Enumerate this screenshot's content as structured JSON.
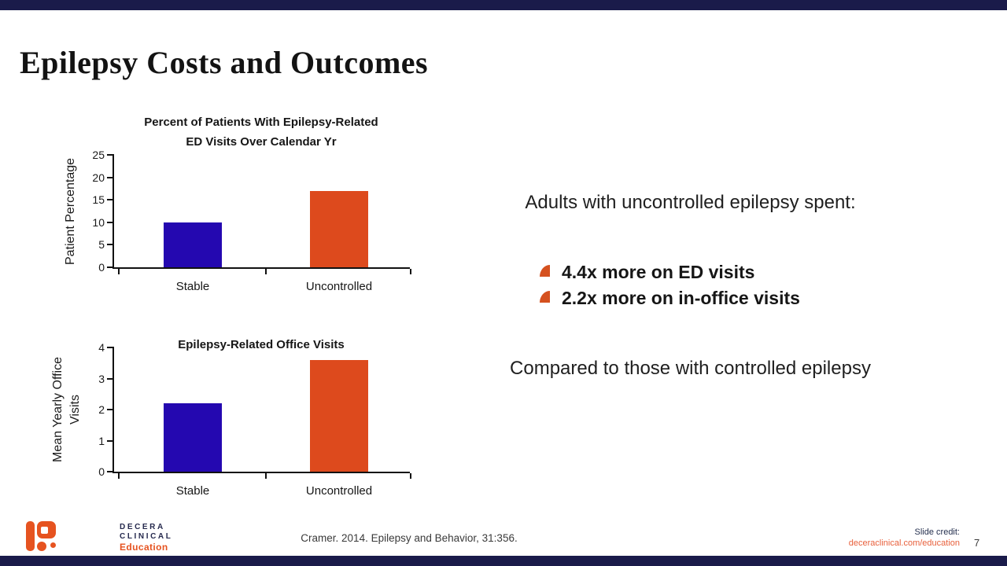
{
  "slide": {
    "title": "Epilepsy Costs and Outcomes",
    "page_number": "7",
    "citation": "Cramer. 2014. Epilepsy and Behavior, 31:356.",
    "slide_credit_label": "Slide credit:",
    "slide_credit_link": "deceraclinical.com/education"
  },
  "logo": {
    "line1": "DECERA",
    "line2": "CLINICAL",
    "line3": "Education"
  },
  "right_panel": {
    "heading": "Adults with uncontrolled epilepsy spent:",
    "bullets": [
      "4.4x more on ED visits",
      "2.2x more on in-office visits"
    ],
    "footnote": "Compared to those with controlled epilepsy"
  },
  "colors": {
    "navy_bar": "#1a1b4a",
    "stable_bar": "#2408b0",
    "uncontrolled_bar": "#dd4a1d",
    "bullet_orange": "#d5511f",
    "link_orange": "#e8603c",
    "logo_orange": "#e65320",
    "logo_navy": "#262a4e"
  },
  "chart_data": [
    {
      "type": "bar",
      "title": "Percent of Patients With Epilepsy-Related ED Visits Over Calendar Yr",
      "title_lines": [
        "Percent of Patients With Epilepsy-Related",
        "ED Visits Over Calendar Yr"
      ],
      "ylabel": "Patient Percentage",
      "ylabel_lines": [
        "Patient Percentage"
      ],
      "xlabel": "",
      "categories": [
        "Stable",
        "Uncontrolled"
      ],
      "values": [
        10,
        17
      ],
      "yticks": [
        0,
        5,
        10,
        15,
        20,
        25
      ],
      "ylim": [
        0,
        25
      ],
      "grid": false,
      "legend": false,
      "bar_colors": [
        "#2408b0",
        "#dd4a1d"
      ]
    },
    {
      "type": "bar",
      "title": "Epilepsy-Related Office Visits",
      "title_lines": [
        "Epilepsy-Related Office Visits"
      ],
      "ylabel": "Mean Yearly Office Visits",
      "ylabel_lines": [
        "Mean Yearly Office",
        "Visits"
      ],
      "xlabel": "",
      "categories": [
        "Stable",
        "Uncontrolled"
      ],
      "values": [
        2.2,
        3.6
      ],
      "yticks": [
        0,
        1,
        2,
        3,
        4
      ],
      "ylim": [
        0,
        4
      ],
      "grid": false,
      "legend": false,
      "bar_colors": [
        "#2408b0",
        "#dd4a1d"
      ]
    }
  ]
}
